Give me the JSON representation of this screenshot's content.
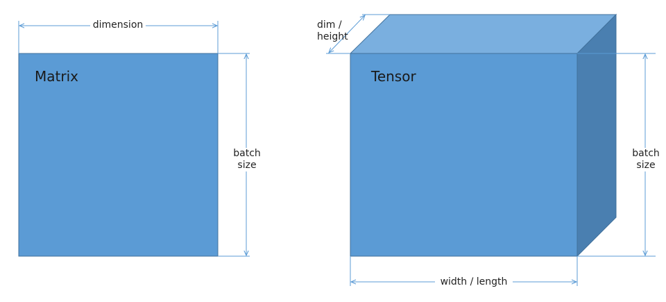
{
  "colors": {
    "front": "#5b9bd5",
    "top": "#7aafdf",
    "side": "#4a7fb0",
    "edge": "#41719c",
    "arrow": "#5b9bd5"
  },
  "matrix": {
    "title": "Matrix",
    "width_label": "dimension",
    "height_label": "batch\nsize"
  },
  "tensor": {
    "title": "Tensor",
    "depth_label": "dim /\nheight",
    "height_label": "batch\nsize",
    "width_label": "width / length"
  }
}
